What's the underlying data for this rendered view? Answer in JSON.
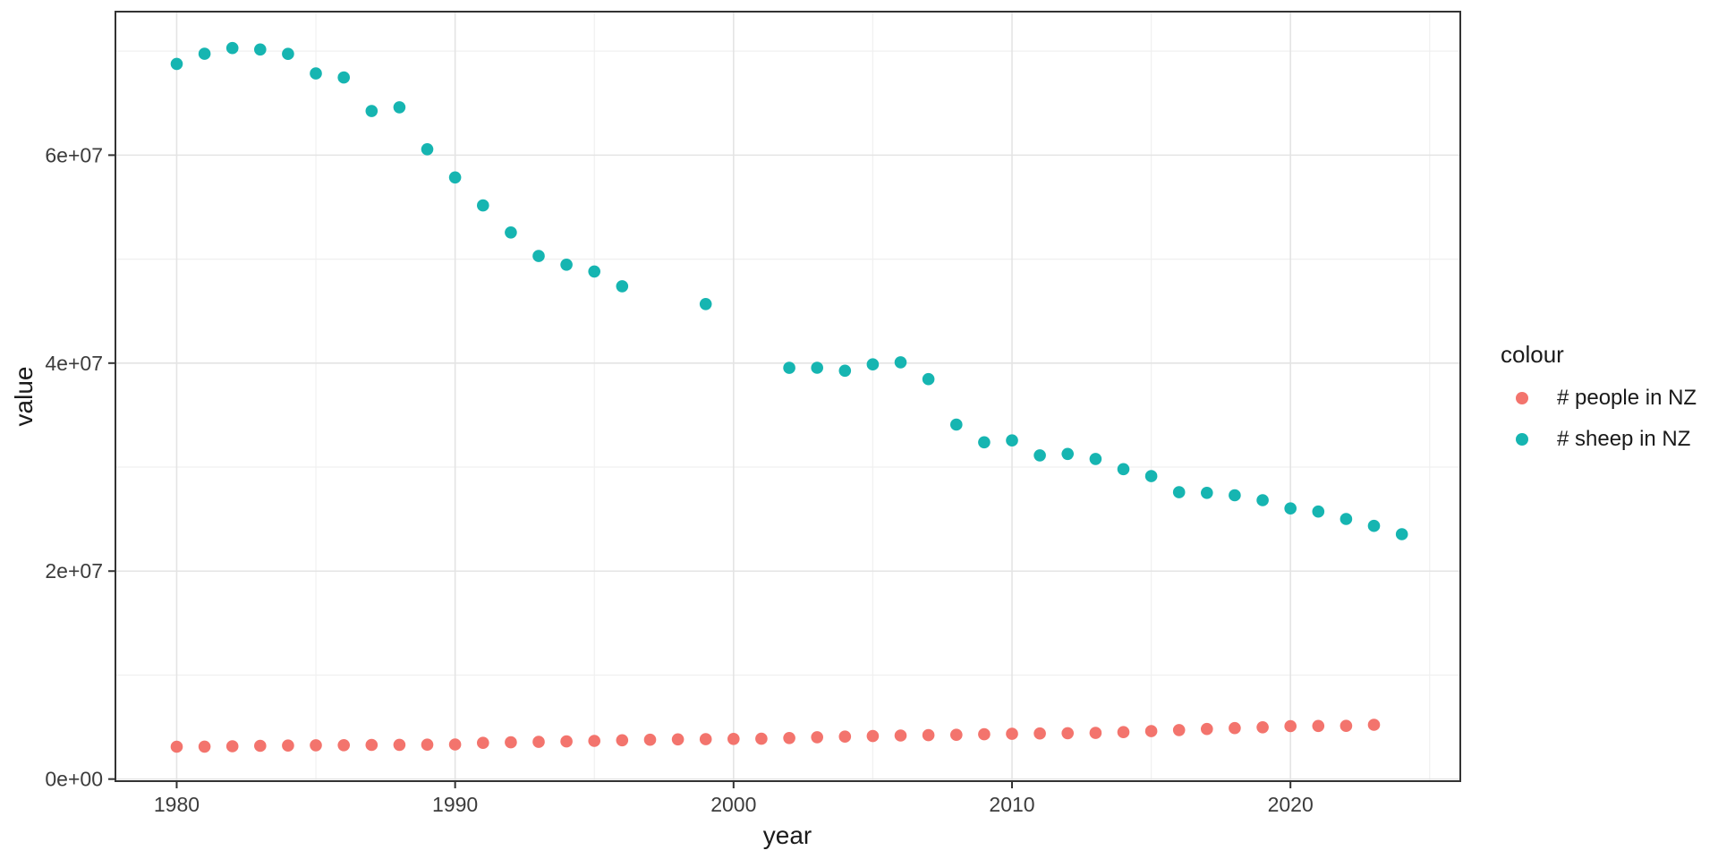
{
  "chart_data": {
    "type": "scatter",
    "title": "",
    "xlabel": "year",
    "ylabel": "value",
    "grid": "on",
    "legend_position": "right",
    "x_domain": [
      1977.8,
      2026.1
    ],
    "y_domain": [
      -200000,
      73800000
    ],
    "x_ticks": {
      "major": [
        1980,
        1990,
        2000,
        2010,
        2020
      ],
      "major_labels": [
        "1980",
        "1990",
        "2000",
        "2010",
        "2020"
      ],
      "minor": [
        1985,
        1995,
        2005,
        2015,
        2025
      ]
    },
    "y_ticks": {
      "major": [
        0,
        20000000,
        40000000,
        60000000
      ],
      "major_labels": [
        "0e+00",
        "2e+07",
        "4e+07",
        "6e+07"
      ],
      "minor": [
        10000000,
        30000000,
        50000000,
        70000000
      ]
    },
    "series": [
      {
        "name": "# people in NZ",
        "color": "#F3746D",
        "points": [
          [
            1980,
            3113000
          ],
          [
            1981,
            3124000
          ],
          [
            1982,
            3156000
          ],
          [
            1983,
            3199000
          ],
          [
            1984,
            3227000
          ],
          [
            1985,
            3247000
          ],
          [
            1986,
            3263000
          ],
          [
            1987,
            3284000
          ],
          [
            1988,
            3297000
          ],
          [
            1989,
            3307000
          ],
          [
            1990,
            3330000
          ],
          [
            1991,
            3479000
          ],
          [
            1992,
            3532000
          ],
          [
            1993,
            3576000
          ],
          [
            1994,
            3620000
          ],
          [
            1995,
            3673000
          ],
          [
            1996,
            3732000
          ],
          [
            1997,
            3781000
          ],
          [
            1998,
            3815000
          ],
          [
            1999,
            3835000
          ],
          [
            2000,
            3858000
          ],
          [
            2001,
            3881000
          ],
          [
            2002,
            3948000
          ],
          [
            2003,
            4027000
          ],
          [
            2004,
            4087000
          ],
          [
            2005,
            4134000
          ],
          [
            2006,
            4185000
          ],
          [
            2007,
            4224000
          ],
          [
            2008,
            4260000
          ],
          [
            2009,
            4306000
          ],
          [
            2010,
            4351000
          ],
          [
            2011,
            4384000
          ],
          [
            2012,
            4408000
          ],
          [
            2013,
            4442000
          ],
          [
            2014,
            4517000
          ],
          [
            2015,
            4610000
          ],
          [
            2016,
            4714000
          ],
          [
            2017,
            4814000
          ],
          [
            2018,
            4901000
          ],
          [
            2019,
            4979000
          ],
          [
            2020,
            5090000
          ],
          [
            2021,
            5111000
          ],
          [
            2022,
            5118000
          ],
          [
            2023,
            5223000
          ]
        ]
      },
      {
        "name": "# sheep in NZ",
        "color": "#16B5B1",
        "points": [
          [
            1980,
            68772000
          ],
          [
            1981,
            69751000
          ],
          [
            1982,
            70301000
          ],
          [
            1983,
            70163000
          ],
          [
            1984,
            69739000
          ],
          [
            1985,
            67854000
          ],
          [
            1986,
            67470000
          ],
          [
            1987,
            64244000
          ],
          [
            1988,
            64600000
          ],
          [
            1989,
            60569000
          ],
          [
            1990,
            57852000
          ],
          [
            1991,
            55162000
          ],
          [
            1992,
            52568000
          ],
          [
            1993,
            50298000
          ],
          [
            1994,
            49466000
          ],
          [
            1995,
            48816000
          ],
          [
            1996,
            47394000
          ],
          [
            1999,
            45680000
          ],
          [
            2002,
            39546000
          ],
          [
            2003,
            39552000
          ],
          [
            2004,
            39271000
          ],
          [
            2005,
            39880000
          ],
          [
            2006,
            40081000
          ],
          [
            2007,
            38460000
          ],
          [
            2008,
            34088000
          ],
          [
            2009,
            32384000
          ],
          [
            2010,
            32563000
          ],
          [
            2011,
            31132000
          ],
          [
            2012,
            31263000
          ],
          [
            2013,
            30787000
          ],
          [
            2014,
            29803000
          ],
          [
            2015,
            29135000
          ],
          [
            2016,
            27584000
          ],
          [
            2017,
            27527000
          ],
          [
            2018,
            27296000
          ],
          [
            2019,
            26822000
          ],
          [
            2020,
            26027000
          ],
          [
            2021,
            25725000
          ],
          [
            2022,
            25008000
          ],
          [
            2023,
            24352000
          ],
          [
            2024,
            23552000
          ]
        ]
      }
    ],
    "style": {
      "panel_border_color": "#333333",
      "grid_major_color": "#E4E4E4",
      "grid_minor_color": "#F0F0F0",
      "tick_color": "#333333",
      "tick_label_color": "#3c3c3c",
      "point_radius": 6.8
    }
  },
  "legend": {
    "title": "colour",
    "items": [
      {
        "label": "# people in NZ",
        "color": "#F3746D"
      },
      {
        "label": "# sheep in NZ",
        "color": "#16B5B1"
      }
    ]
  }
}
